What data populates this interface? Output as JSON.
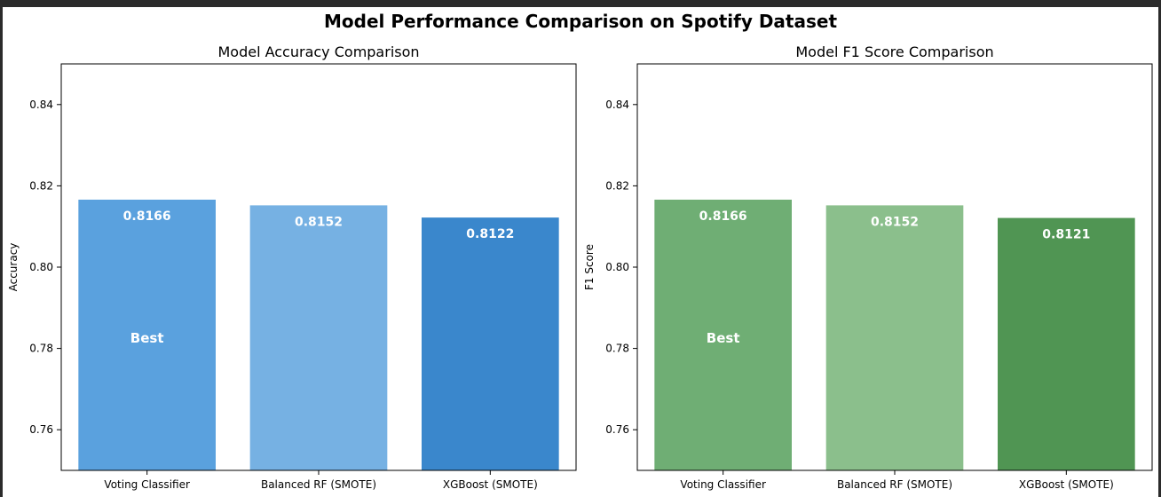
{
  "suptitle": "Model Performance Comparison on Spotify Dataset",
  "chart_data": [
    {
      "type": "bar",
      "title": "Model Accuracy Comparison",
      "xlabel": "",
      "ylabel": "Accuracy",
      "categories": [
        "Voting Classifier",
        "Balanced RF (SMOTE)",
        "XGBoost (SMOTE)"
      ],
      "values": [
        0.8166,
        0.8152,
        0.8122
      ],
      "value_labels": [
        "0.8166",
        "0.8152",
        "0.8122"
      ],
      "colors": [
        "#5aa1de",
        "#76b1e3",
        "#3a87cc"
      ],
      "ylim": [
        0.75,
        0.85
      ],
      "yticks": [
        0.76,
        0.78,
        0.8,
        0.82,
        0.84
      ],
      "ytick_labels": [
        "0.76",
        "0.78",
        "0.80",
        "0.82",
        "0.84"
      ],
      "annotation": {
        "text": "Best",
        "category_index": 0,
        "y": 0.7825
      },
      "grid": false
    },
    {
      "type": "bar",
      "title": "Model F1 Score Comparison",
      "xlabel": "",
      "ylabel": "F1 Score",
      "categories": [
        "Voting Classifier",
        "Balanced RF (SMOTE)",
        "XGBoost (SMOTE)"
      ],
      "values": [
        0.8166,
        0.8152,
        0.8121
      ],
      "value_labels": [
        "0.8166",
        "0.8152",
        "0.8121"
      ],
      "colors": [
        "#6fae74",
        "#8bbf8c",
        "#509553"
      ],
      "ylim": [
        0.75,
        0.85
      ],
      "yticks": [
        0.76,
        0.78,
        0.8,
        0.82,
        0.84
      ],
      "ytick_labels": [
        "0.76",
        "0.78",
        "0.80",
        "0.82",
        "0.84"
      ],
      "annotation": {
        "text": "Best",
        "category_index": 0,
        "y": 0.7825
      },
      "grid": false
    }
  ]
}
